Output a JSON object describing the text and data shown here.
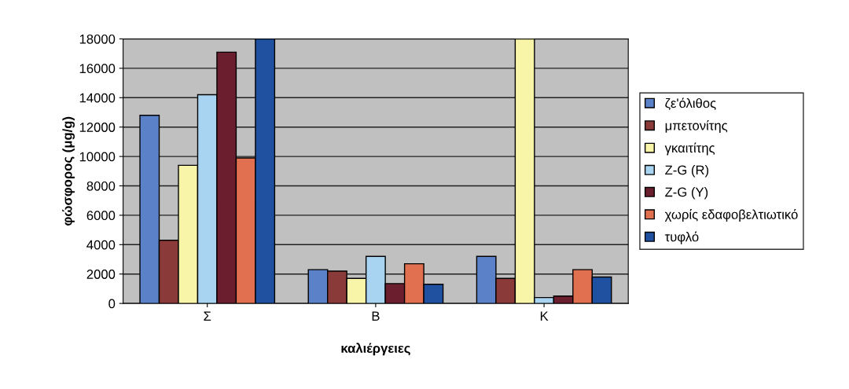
{
  "chart_data": {
    "type": "bar",
    "xlabel": "καλιέργειες",
    "ylabel": "φώσφορος (μg/g)",
    "categories": [
      "Σ",
      "Β",
      "Κ"
    ],
    "series": [
      {
        "name": "ζε'όλιθος",
        "color": "#5b82c8",
        "values": [
          12800,
          2300,
          3200
        ]
      },
      {
        "name": "μπετονίτης",
        "color": "#8b3a3a",
        "values": [
          4300,
          2200,
          1700
        ]
      },
      {
        "name": "γκαιτίτης",
        "color": "#f8f4a8",
        "values": [
          9400,
          1700,
          18000
        ]
      },
      {
        "name": "Z-G (R)",
        "color": "#a8d4f2",
        "values": [
          14200,
          3200,
          400
        ]
      },
      {
        "name": "Z-G (Y)",
        "color": "#6b1f2e",
        "values": [
          17100,
          1350,
          500
        ]
      },
      {
        "name": "χωρίς εδαφοβελτιωτικό",
        "color": "#e07050",
        "values": [
          9900,
          2700,
          2300
        ]
      },
      {
        "name": "τυφλό",
        "color": "#2050a0",
        "values": [
          18000,
          1300,
          1800
        ]
      }
    ],
    "ylim": [
      0,
      18000
    ],
    "yticks": [
      0,
      2000,
      4000,
      6000,
      8000,
      10000,
      12000,
      14000,
      16000,
      18000
    ],
    "grid": "y",
    "legend": "right"
  }
}
